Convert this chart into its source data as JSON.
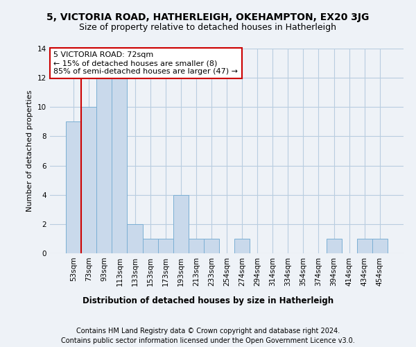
{
  "title1": "5, VICTORIA ROAD, HATHERLEIGH, OKEHAMPTON, EX20 3JG",
  "title2": "Size of property relative to detached houses in Hatherleigh",
  "xlabel": "Distribution of detached houses by size in Hatherleigh",
  "ylabel": "Number of detached properties",
  "footer1": "Contains HM Land Registry data © Crown copyright and database right 2024.",
  "footer2": "Contains public sector information licensed under the Open Government Licence v3.0.",
  "bins": [
    "53sqm",
    "73sqm",
    "93sqm",
    "113sqm",
    "133sqm",
    "153sqm",
    "173sqm",
    "193sqm",
    "213sqm",
    "233sqm",
    "254sqm",
    "274sqm",
    "294sqm",
    "314sqm",
    "334sqm",
    "354sqm",
    "374sqm",
    "394sqm",
    "414sqm",
    "434sqm",
    "454sqm"
  ],
  "values": [
    9,
    10,
    12,
    12,
    2,
    1,
    1,
    4,
    1,
    1,
    0,
    1,
    0,
    0,
    0,
    0,
    0,
    1,
    0,
    1,
    1
  ],
  "bar_color": "#c9d9eb",
  "bar_edge_color": "#7bafd4",
  "annotation_text": "5 VICTORIA ROAD: 72sqm\n← 15% of detached houses are smaller (8)\n85% of semi-detached houses are larger (47) →",
  "annotation_box_color": "white",
  "annotation_box_edge_color": "#cc0000",
  "subject_line_color": "#cc0000",
  "ylim": [
    0,
    14
  ],
  "yticks": [
    0,
    2,
    4,
    6,
    8,
    10,
    12,
    14
  ],
  "bg_color": "#eef2f7",
  "plot_bg_color": "#eef2f7",
  "grid_color": "#b8cde0",
  "title1_fontsize": 10,
  "title2_fontsize": 9,
  "xlabel_fontsize": 8.5,
  "ylabel_fontsize": 8,
  "tick_fontsize": 7.5,
  "annotation_fontsize": 8,
  "footer_fontsize": 7
}
